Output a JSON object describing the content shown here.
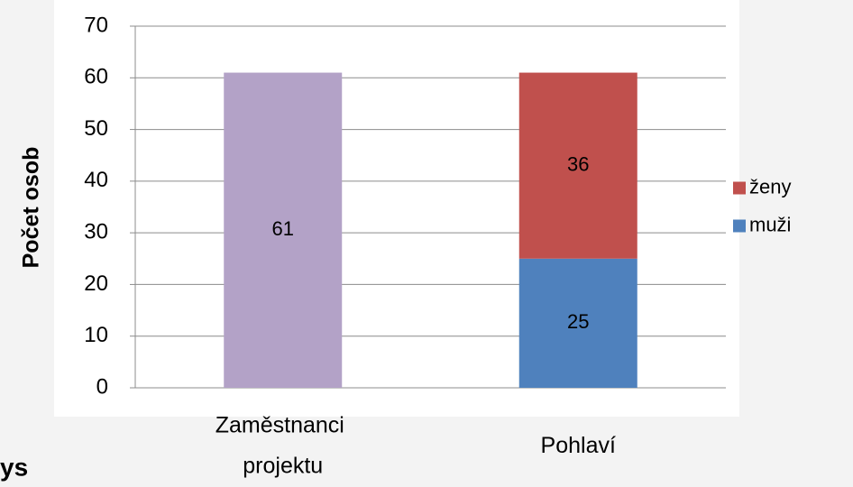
{
  "chart_data": {
    "type": "stacked_bar",
    "y_label": "Počet osob",
    "categories": [
      "Zaměstnanci projektu",
      "Pohlaví"
    ],
    "series": [
      {
        "color": "#b3a2c7",
        "values": [
          61,
          null
        ]
      },
      {
        "name": "muži",
        "color": "#4f81bd",
        "values": [
          null,
          25
        ]
      },
      {
        "name": "ženy",
        "color": "#c0504d",
        "values": [
          null,
          36
        ]
      }
    ],
    "ylim": [
      0,
      70
    ],
    "yticks": [
      0,
      10,
      20,
      30,
      40,
      50,
      60,
      70
    ],
    "grid": true,
    "legend": "right",
    "annotation": "ys"
  }
}
